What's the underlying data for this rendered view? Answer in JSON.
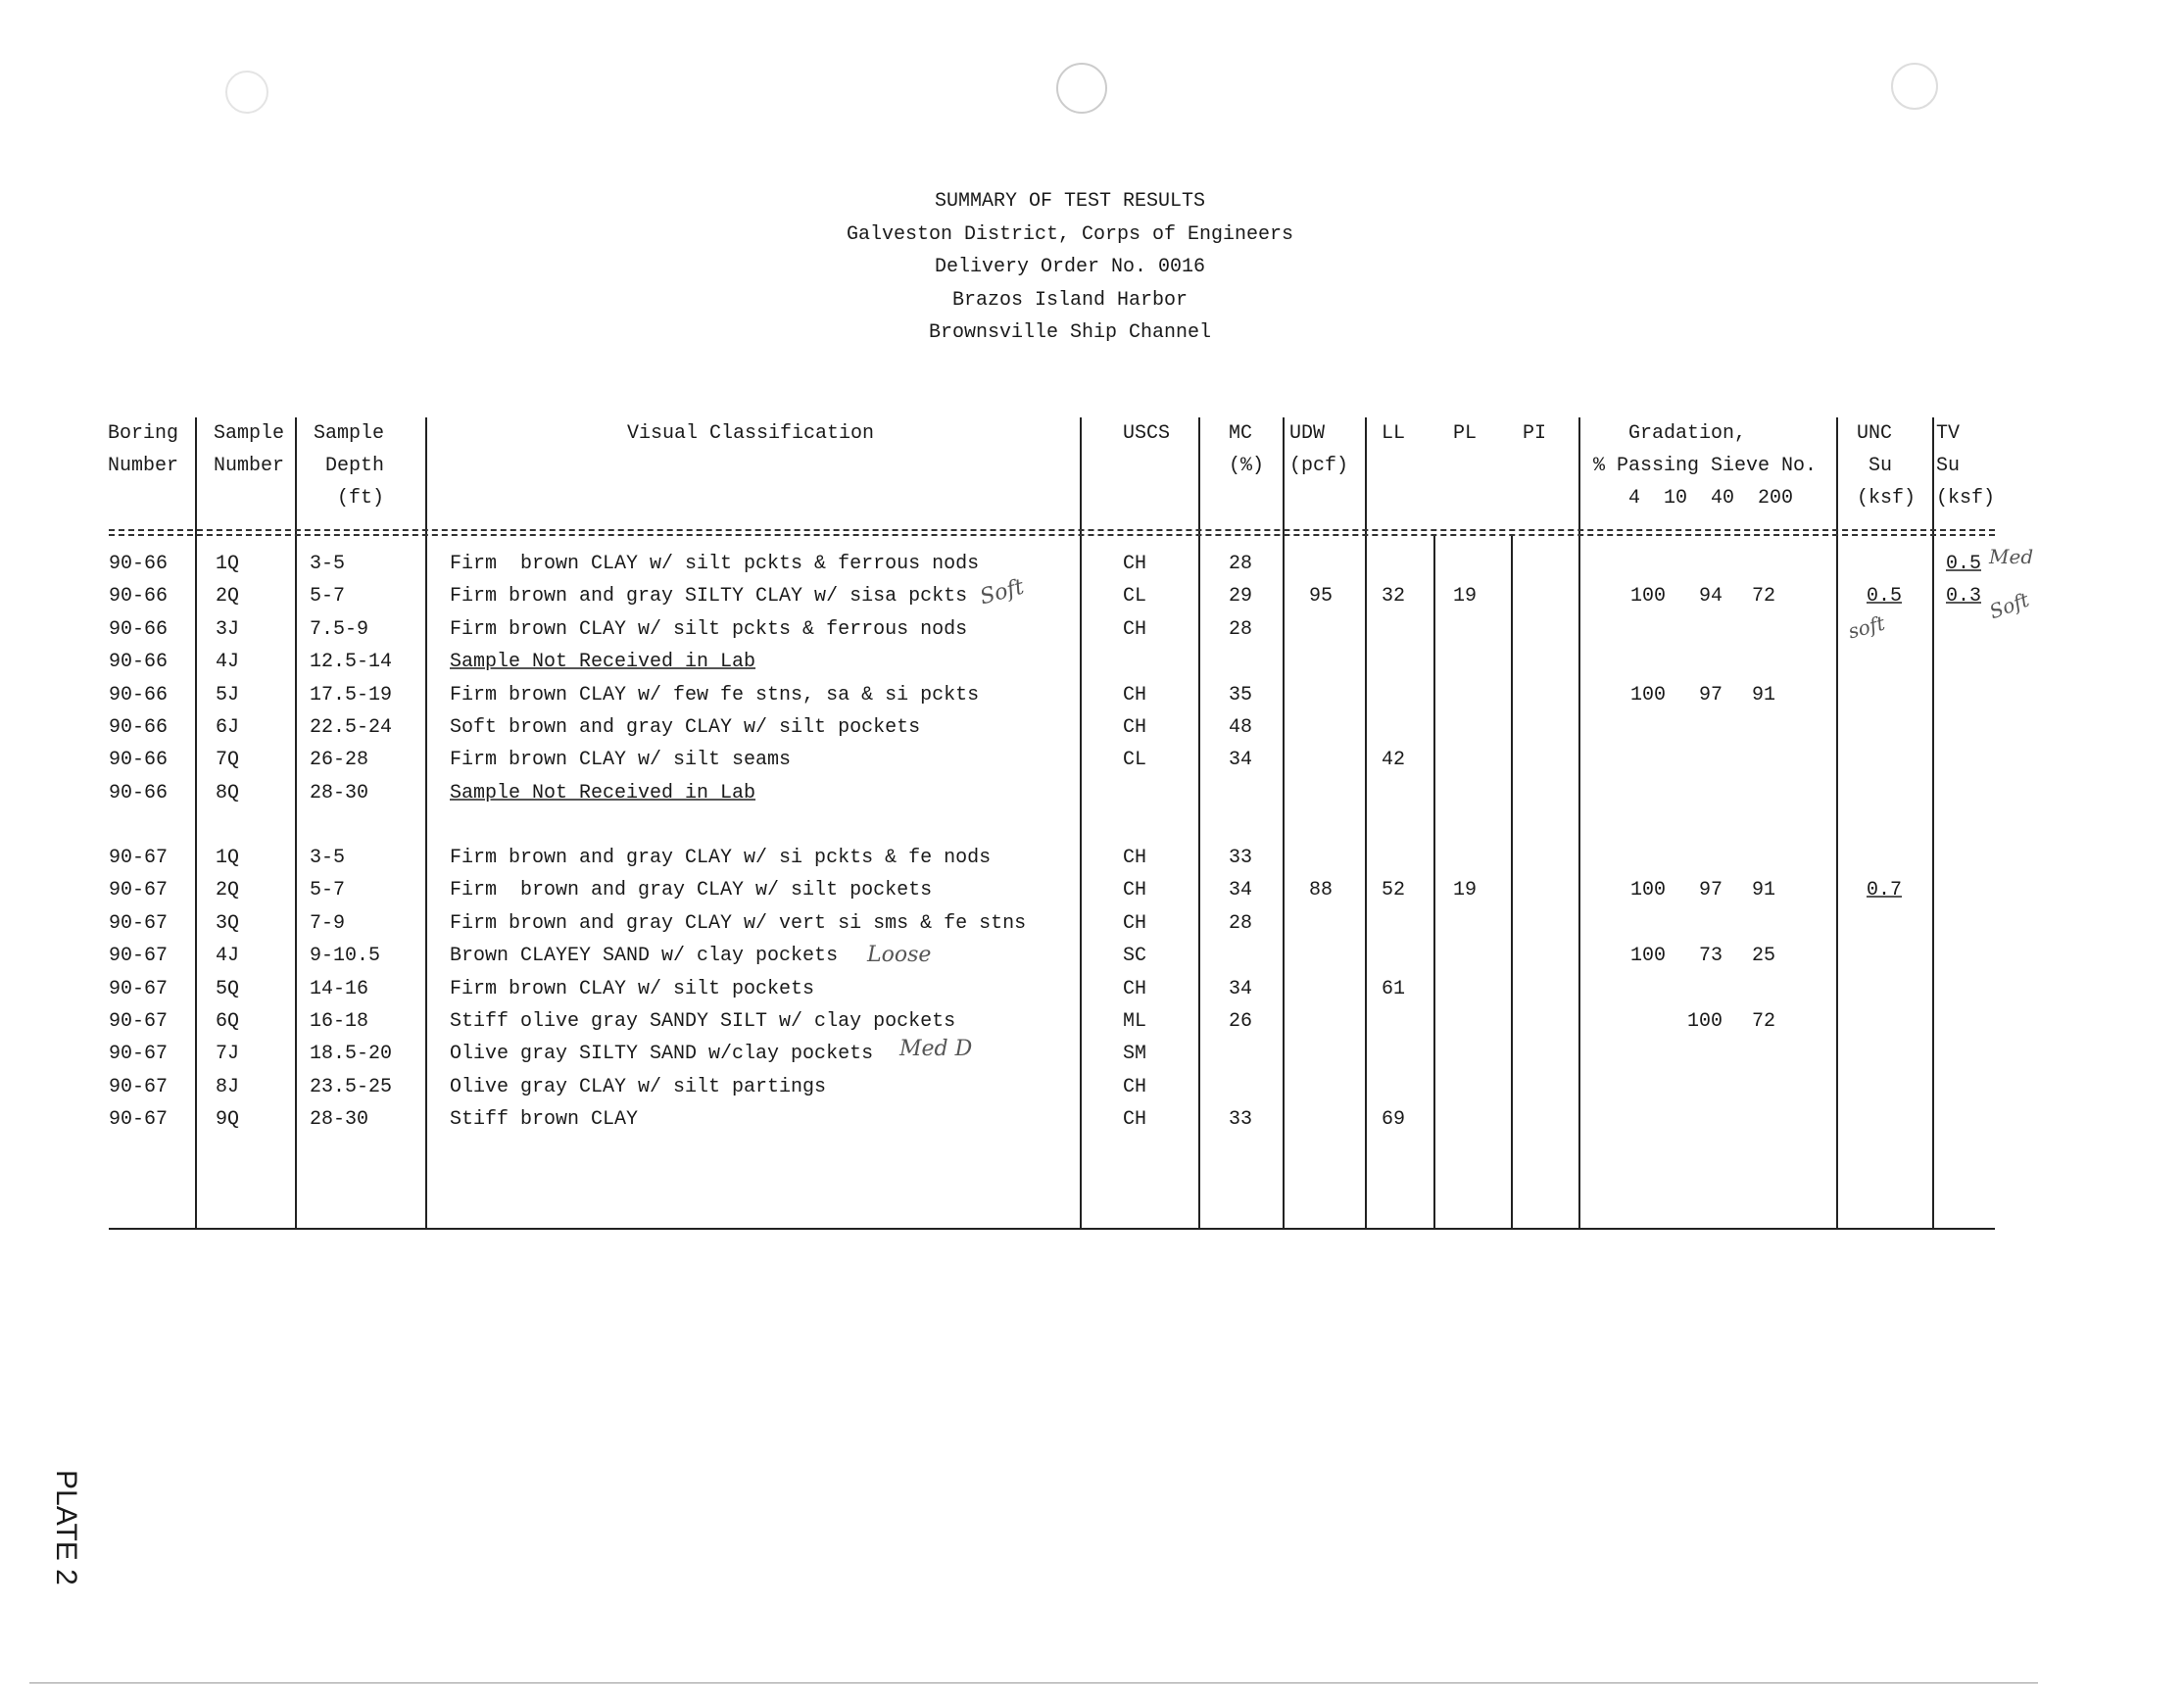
{
  "header": {
    "lines": [
      "SUMMARY OF TEST RESULTS",
      "Galveston District, Corps of Engineers",
      "Delivery Order No. 0016",
      "Brazos Island Harbor",
      "Brownsville Ship Channel"
    ]
  },
  "columns": {
    "boring": "Boring\nNumber",
    "sample": "Sample\nNumber",
    "depth": "Sample\n Depth\n  (ft)",
    "visual": "Visual Classification",
    "uscs": "USCS",
    "mc": "MC\n(%)",
    "udw": "UDW\n(pcf)",
    "ll": "LL",
    "pl": "PL",
    "pi": "PI",
    "gradation": "   Gradation,\n% Passing Sieve No.\n   4  10  40  200",
    "unc": "UNC\n Su\n(ksf)",
    "tv": "TV\nSu\n(ksf)"
  },
  "rows": [
    {
      "boring": "90-66",
      "sample": "1Q",
      "depth": "3-5",
      "visual": "Firm  brown CLAY w/ silt pckts & ferrous nods",
      "uscs": "CH",
      "mc": "28",
      "udw": "",
      "ll": "",
      "pl": "",
      "pi": "",
      "g10": "",
      "g40": "",
      "g200": "",
      "unc": "",
      "tv": "0.5"
    },
    {
      "boring": "90-66",
      "sample": "2Q",
      "depth": "5-7",
      "visual": "Firm brown and gray SILTY CLAY w/ sisa pckts",
      "uscs": "CL",
      "mc": "29",
      "udw": "95",
      "ll": "32",
      "pl": "19",
      "pi": "",
      "g10": "100",
      "g40": "94",
      "g200": "72",
      "unc": "0.5",
      "tv": "0.3"
    },
    {
      "boring": "90-66",
      "sample": "3J",
      "depth": "7.5-9",
      "visual": "Firm brown CLAY w/ silt pckts & ferrous nods",
      "uscs": "CH",
      "mc": "28",
      "udw": "",
      "ll": "",
      "pl": "",
      "pi": "",
      "g10": "",
      "g40": "",
      "g200": "",
      "unc": "",
      "tv": ""
    },
    {
      "boring": "90-66",
      "sample": "4J",
      "depth": "12.5-14",
      "visual": "Sample Not Received in Lab",
      "uscs": "",
      "mc": "",
      "udw": "",
      "ll": "",
      "pl": "",
      "pi": "",
      "g10": "",
      "g40": "",
      "g200": "",
      "unc": "",
      "tv": "",
      "underline": true
    },
    {
      "boring": "90-66",
      "sample": "5J",
      "depth": "17.5-19",
      "visual": "Firm brown CLAY w/ few fe stns, sa & si pckts",
      "uscs": "CH",
      "mc": "35",
      "udw": "",
      "ll": "",
      "pl": "",
      "pi": "",
      "g10": "100",
      "g40": "97",
      "g200": "91",
      "unc": "",
      "tv": ""
    },
    {
      "boring": "90-66",
      "sample": "6J",
      "depth": "22.5-24",
      "visual": "Soft brown and gray CLAY w/ silt pockets",
      "uscs": "CH",
      "mc": "48",
      "udw": "",
      "ll": "",
      "pl": "",
      "pi": "",
      "g10": "",
      "g40": "",
      "g200": "",
      "unc": "",
      "tv": ""
    },
    {
      "boring": "90-66",
      "sample": "7Q",
      "depth": "26-28",
      "visual": "Firm brown CLAY w/ silt seams",
      "uscs": "CL",
      "mc": "34",
      "udw": "",
      "ll": "42",
      "pl": "",
      "pi": "",
      "g10": "",
      "g40": "",
      "g200": "",
      "unc": "",
      "tv": ""
    },
    {
      "boring": "90-66",
      "sample": "8Q",
      "depth": "28-30",
      "visual": "Sample Not Received in Lab",
      "uscs": "",
      "mc": "",
      "udw": "",
      "ll": "",
      "pl": "",
      "pi": "",
      "g10": "",
      "g40": "",
      "g200": "",
      "unc": "",
      "tv": "",
      "underline": true
    },
    {
      "boring": "90-67",
      "sample": "1Q",
      "depth": "3-5",
      "visual": "Firm brown and gray CLAY w/ si pckts & fe nods",
      "uscs": "CH",
      "mc": "33",
      "udw": "",
      "ll": "",
      "pl": "",
      "pi": "",
      "g10": "",
      "g40": "",
      "g200": "",
      "unc": "",
      "tv": ""
    },
    {
      "boring": "90-67",
      "sample": "2Q",
      "depth": "5-7",
      "visual": "Firm  brown and gray CLAY w/ silt pockets",
      "uscs": "CH",
      "mc": "34",
      "udw": "88",
      "ll": "52",
      "pl": "19",
      "pi": "",
      "g10": "100",
      "g40": "97",
      "g200": "91",
      "unc": "0.7",
      "tv": ""
    },
    {
      "boring": "90-67",
      "sample": "3Q",
      "depth": "7-9",
      "visual": "Firm brown and gray CLAY w/ vert si sms & fe stns",
      "uscs": "CH",
      "mc": "28",
      "udw": "",
      "ll": "",
      "pl": "",
      "pi": "",
      "g10": "",
      "g40": "",
      "g200": "",
      "unc": "",
      "tv": ""
    },
    {
      "boring": "90-67",
      "sample": "4J",
      "depth": "9-10.5",
      "visual": "Brown CLAYEY SAND w/ clay pockets",
      "uscs": "SC",
      "mc": "",
      "udw": "",
      "ll": "",
      "pl": "",
      "pi": "",
      "g10": "100",
      "g40": "73",
      "g200": "25",
      "unc": "",
      "tv": ""
    },
    {
      "boring": "90-67",
      "sample": "5Q",
      "depth": "14-16",
      "visual": "Firm brown CLAY w/ silt pockets",
      "uscs": "CH",
      "mc": "34",
      "udw": "",
      "ll": "61",
      "pl": "",
      "pi": "",
      "g10": "",
      "g40": "",
      "g200": "",
      "unc": "",
      "tv": ""
    },
    {
      "boring": "90-67",
      "sample": "6Q",
      "depth": "16-18",
      "visual": "Stiff olive gray SANDY SILT w/ clay pockets",
      "uscs": "ML",
      "mc": "26",
      "udw": "",
      "ll": "",
      "pl": "",
      "pi": "",
      "g10": "",
      "g40": "100",
      "g200": "72",
      "unc": "",
      "tv": ""
    },
    {
      "boring": "90-67",
      "sample": "7J",
      "depth": "18.5-20",
      "visual": "Olive gray SILTY SAND w/clay pockets",
      "uscs": "SM",
      "mc": "",
      "udw": "",
      "ll": "",
      "pl": "",
      "pi": "",
      "g10": "",
      "g40": "",
      "g200": "",
      "unc": "",
      "tv": ""
    },
    {
      "boring": "90-67",
      "sample": "8J",
      "depth": "23.5-25",
      "visual": "Olive gray CLAY w/ silt partings",
      "uscs": "CH",
      "mc": "",
      "udw": "",
      "ll": "",
      "pl": "",
      "pi": "",
      "g10": "",
      "g40": "",
      "g200": "",
      "unc": "",
      "tv": ""
    },
    {
      "boring": "90-67",
      "sample": "9Q",
      "depth": "28-30",
      "visual": "Stiff brown CLAY",
      "uscs": "CH",
      "mc": "33",
      "udw": "",
      "ll": "69",
      "pl": "",
      "pi": "",
      "g10": "",
      "g40": "",
      "g200": "",
      "unc": "",
      "tv": ""
    }
  ],
  "handwritten": {
    "soft_2q": "Soft",
    "med_tv": "Med",
    "soft_unc": "soft",
    "soft_tv": "Soft",
    "loose": "Loose",
    "med_d": "Med D"
  },
  "footer": {
    "plate": "PLATE 2"
  }
}
